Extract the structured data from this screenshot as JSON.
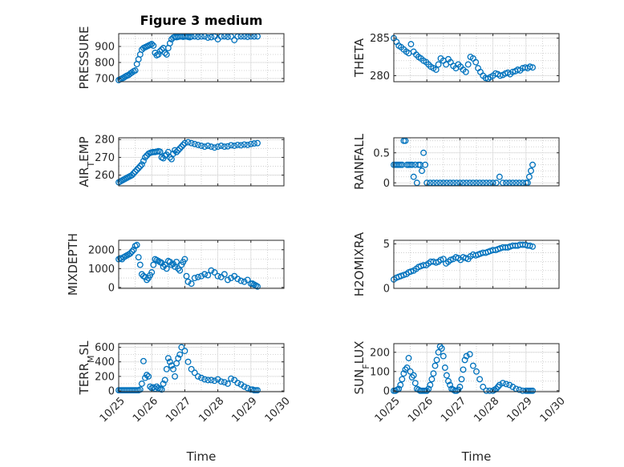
{
  "figure": {
    "title": "Figure 3 medium",
    "marker_color": "#0072BD",
    "grid_color": "#c8c8c8",
    "axis_color": "#262626"
  },
  "chart_data": [
    {
      "type": "scatter",
      "ylabel": "PRESSURE",
      "xlim": [
        0,
        5
      ],
      "ylim": [
        680,
        980
      ],
      "yticks": [
        700,
        800,
        900
      ],
      "ytick_labels": [
        "700",
        "800",
        "900"
      ],
      "x": [
        0.0,
        0.05,
        0.1,
        0.15,
        0.2,
        0.25,
        0.3,
        0.35,
        0.4,
        0.45,
        0.5,
        0.55,
        0.6,
        0.65,
        0.7,
        0.75,
        0.8,
        0.85,
        0.9,
        0.95,
        1.0,
        1.05,
        1.1,
        1.15,
        1.2,
        1.25,
        1.3,
        1.35,
        1.4,
        1.45,
        1.5,
        1.55,
        1.6,
        1.65,
        1.7,
        1.75,
        1.8,
        1.85,
        1.9,
        1.95,
        2.0,
        2.05,
        2.1,
        2.15,
        2.2,
        2.3,
        2.4,
        2.5,
        2.6,
        2.7,
        2.8,
        2.9,
        3.0,
        3.1,
        3.2,
        3.3,
        3.4,
        3.5,
        3.6,
        3.7,
        3.8,
        3.9,
        4.0,
        4.1,
        4.2
      ],
      "y": [
        690,
        695,
        700,
        705,
        712,
        718,
        722,
        730,
        738,
        745,
        750,
        790,
        820,
        850,
        880,
        890,
        895,
        900,
        905,
        910,
        915,
        905,
        860,
        845,
        850,
        870,
        880,
        890,
        860,
        850,
        890,
        920,
        945,
        955,
        960,
        958,
        960,
        962,
        963,
        960,
        962,
        963,
        960,
        958,
        962,
        963,
        960,
        962,
        963,
        955,
        958,
        962,
        945,
        962,
        963,
        960,
        962,
        940,
        962,
        963,
        962,
        960,
        963,
        962,
        963
      ],
      "grid_x": [
        0.5,
        1.0,
        1.5,
        2.0,
        2.5,
        3.0,
        3.5,
        4.0,
        4.5
      ],
      "grid_y": [
        700,
        750,
        800,
        850,
        900,
        950
      ]
    },
    {
      "type": "scatter",
      "ylabel": "THETA",
      "xlim": [
        0,
        5
      ],
      "ylim": [
        279.2,
        285.6
      ],
      "yticks": [
        280,
        285
      ],
      "ytick_labels": [
        "280",
        "285"
      ],
      "x": [
        0.0,
        0.08,
        0.15,
        0.22,
        0.3,
        0.38,
        0.45,
        0.52,
        0.6,
        0.68,
        0.75,
        0.82,
        0.9,
        0.98,
        1.05,
        1.12,
        1.2,
        1.28,
        1.35,
        1.42,
        1.5,
        1.58,
        1.65,
        1.72,
        1.8,
        1.88,
        1.95,
        2.02,
        2.1,
        2.18,
        2.25,
        2.32,
        2.4,
        2.48,
        2.55,
        2.62,
        2.7,
        2.78,
        2.85,
        2.92,
        3.0,
        3.08,
        3.15,
        3.22,
        3.3,
        3.38,
        3.45,
        3.52,
        3.6,
        3.68,
        3.75,
        3.82,
        3.9,
        3.98,
        4.05,
        4.12,
        4.2
      ],
      "y": [
        285.0,
        284.5,
        284.0,
        283.8,
        283.5,
        283.2,
        283.0,
        284.2,
        283.2,
        282.8,
        282.5,
        282.3,
        282.0,
        281.8,
        281.5,
        281.2,
        281.0,
        280.8,
        281.5,
        282.3,
        282.0,
        281.5,
        282.2,
        281.8,
        281.3,
        281.0,
        281.5,
        281.2,
        280.8,
        280.5,
        281.5,
        282.5,
        282.3,
        281.8,
        281.0,
        280.5,
        280.0,
        279.7,
        279.6,
        279.8,
        280.0,
        280.3,
        280.2,
        280.0,
        280.1,
        280.3,
        280.4,
        280.2,
        280.5,
        280.6,
        280.8,
        280.7,
        281.0,
        281.1,
        281.0,
        281.2,
        281.1
      ],
      "grid_x": [
        0.5,
        1.0,
        1.5,
        2.0,
        2.5,
        3.0,
        3.5,
        4.0,
        4.5
      ],
      "grid_y": [
        280,
        281,
        282,
        283,
        284,
        285
      ]
    },
    {
      "type": "scatter",
      "ylabel_parts": [
        "AIR",
        "T",
        "EMP"
      ],
      "ylabel": "AIR_TEMP",
      "xlim": [
        0,
        5
      ],
      "ylim": [
        254,
        281
      ],
      "yticks": [
        260,
        270,
        280
      ],
      "ytick_labels": [
        "260",
        "270",
        "280"
      ],
      "x": [
        0.0,
        0.05,
        0.1,
        0.15,
        0.2,
        0.25,
        0.3,
        0.35,
        0.4,
        0.45,
        0.5,
        0.55,
        0.6,
        0.65,
        0.7,
        0.75,
        0.8,
        0.85,
        0.9,
        0.95,
        1.0,
        1.05,
        1.1,
        1.15,
        1.2,
        1.25,
        1.3,
        1.35,
        1.4,
        1.45,
        1.5,
        1.55,
        1.6,
        1.65,
        1.7,
        1.75,
        1.8,
        1.85,
        1.9,
        1.95,
        2.0,
        2.1,
        2.2,
        2.3,
        2.4,
        2.5,
        2.6,
        2.7,
        2.8,
        2.9,
        3.0,
        3.1,
        3.2,
        3.3,
        3.4,
        3.5,
        3.6,
        3.7,
        3.8,
        3.9,
        4.0,
        4.1,
        4.2
      ],
      "y": [
        256,
        256.5,
        257,
        257.5,
        258,
        258.5,
        259,
        259.5,
        260,
        261,
        262,
        263,
        264,
        265,
        266,
        268,
        270,
        271,
        272,
        272.5,
        272.8,
        273,
        273,
        273.2,
        273.5,
        273.2,
        270,
        269.5,
        271,
        271.5,
        273,
        270,
        269,
        272,
        274,
        273,
        274,
        275,
        276,
        277,
        278,
        278.5,
        278,
        277.5,
        277,
        276.5,
        276,
        276.5,
        276,
        275.5,
        276,
        276.5,
        276,
        276.2,
        276.8,
        276.5,
        277,
        276.8,
        277.2,
        277,
        277.5,
        277.8,
        278
      ],
      "grid_x": [
        0.5,
        1.0,
        1.5,
        2.0,
        2.5,
        3.0,
        3.5,
        4.0,
        4.5
      ],
      "grid_y": [
        260,
        265,
        270,
        275,
        280
      ]
    },
    {
      "type": "scatter",
      "ylabel": "RAINFALL",
      "xlim": [
        0,
        5
      ],
      "ylim": [
        -0.05,
        0.75
      ],
      "yticks": [
        0,
        0.5
      ],
      "ytick_labels": [
        "0",
        "0.5"
      ],
      "x": [
        0.0,
        0.05,
        0.1,
        0.15,
        0.2,
        0.25,
        0.3,
        0.35,
        0.4,
        0.45,
        0.5,
        0.55,
        0.6,
        0.65,
        0.7,
        0.75,
        0.8,
        0.85,
        0.9,
        0.95,
        1.0,
        1.1,
        1.2,
        1.3,
        1.4,
        1.5,
        1.6,
        1.7,
        1.8,
        1.9,
        2.0,
        2.1,
        2.2,
        2.3,
        2.4,
        2.5,
        2.6,
        2.7,
        2.8,
        2.9,
        3.0,
        3.1,
        3.2,
        3.3,
        3.4,
        3.5,
        3.6,
        3.7,
        3.8,
        3.9,
        4.0,
        4.05,
        4.1,
        4.15,
        4.2
      ],
      "y": [
        0.3,
        0.3,
        0.3,
        0.3,
        0.3,
        0.3,
        0.7,
        0.7,
        0.3,
        0.3,
        0.3,
        0.3,
        0.1,
        0.3,
        0.0,
        0.3,
        0.3,
        0.2,
        0.5,
        0.3,
        0.0,
        0.0,
        0.0,
        0.0,
        0.0,
        0.0,
        0.0,
        0.0,
        0.0,
        0.0,
        0.0,
        0.0,
        0.0,
        0.0,
        0.0,
        0.0,
        0.0,
        0.0,
        0.0,
        0.0,
        0.0,
        0.0,
        0.1,
        0.0,
        0.0,
        0.0,
        0.0,
        0.0,
        0.0,
        0.0,
        0.0,
        0.0,
        0.1,
        0.2,
        0.3
      ],
      "grid_x": [
        0.5,
        1.0,
        1.5,
        2.0,
        2.5,
        3.0,
        3.5,
        4.0,
        4.5
      ],
      "grid_y": [
        0.1,
        0.2,
        0.3,
        0.4,
        0.5,
        0.6,
        0.7
      ]
    },
    {
      "type": "scatter",
      "ylabel": "MIXDEPTH",
      "xlim": [
        0,
        5
      ],
      "ylim": [
        -50,
        2500
      ],
      "yticks": [
        0,
        1000,
        2000
      ],
      "ytick_labels": [
        "0",
        "1000",
        "2000"
      ],
      "x": [
        0.0,
        0.05,
        0.1,
        0.15,
        0.2,
        0.25,
        0.3,
        0.35,
        0.4,
        0.45,
        0.5,
        0.55,
        0.6,
        0.65,
        0.7,
        0.75,
        0.8,
        0.85,
        0.9,
        0.95,
        1.0,
        1.05,
        1.1,
        1.15,
        1.2,
        1.25,
        1.3,
        1.35,
        1.4,
        1.45,
        1.5,
        1.55,
        1.6,
        1.65,
        1.7,
        1.75,
        1.8,
        1.85,
        1.9,
        1.95,
        2.0,
        2.05,
        2.1,
        2.2,
        2.3,
        2.4,
        2.5,
        2.6,
        2.7,
        2.8,
        2.9,
        3.0,
        3.1,
        3.2,
        3.3,
        3.4,
        3.5,
        3.6,
        3.7,
        3.8,
        3.9,
        4.0,
        4.05,
        4.1,
        4.15,
        4.2
      ],
      "y": [
        1500,
        1550,
        1500,
        1600,
        1650,
        1700,
        1750,
        1800,
        1900,
        2000,
        2200,
        2250,
        1600,
        1200,
        700,
        600,
        550,
        400,
        500,
        650,
        800,
        1200,
        1500,
        1450,
        1400,
        1350,
        1300,
        1100,
        1200,
        1000,
        1400,
        1350,
        1200,
        1250,
        1100,
        1350,
        1000,
        900,
        1200,
        1350,
        1500,
        600,
        300,
        200,
        500,
        550,
        600,
        700,
        650,
        900,
        800,
        600,
        550,
        700,
        400,
        500,
        600,
        450,
        350,
        300,
        400,
        200,
        200,
        150,
        100,
        50
      ],
      "grid_x": [
        0.5,
        1.0,
        1.5,
        2.0,
        2.5,
        3.0,
        3.5,
        4.0,
        4.5
      ],
      "grid_y": [
        500,
        1000,
        1500,
        2000
      ]
    },
    {
      "type": "scatter",
      "ylabel": "H2OMIXRA",
      "xlim": [
        0,
        5
      ],
      "ylim": [
        0,
        5.4
      ],
      "yticks": [
        0,
        5
      ],
      "ytick_labels": [
        "0",
        "5"
      ],
      "x": [
        0.0,
        0.08,
        0.15,
        0.22,
        0.3,
        0.38,
        0.45,
        0.52,
        0.6,
        0.68,
        0.75,
        0.82,
        0.9,
        0.98,
        1.05,
        1.12,
        1.2,
        1.28,
        1.35,
        1.42,
        1.5,
        1.58,
        1.65,
        1.72,
        1.8,
        1.88,
        1.95,
        2.02,
        2.1,
        2.18,
        2.25,
        2.32,
        2.4,
        2.48,
        2.55,
        2.62,
        2.7,
        2.78,
        2.85,
        2.92,
        3.0,
        3.08,
        3.15,
        3.22,
        3.3,
        3.38,
        3.45,
        3.52,
        3.6,
        3.68,
        3.75,
        3.82,
        3.9,
        3.98,
        4.05,
        4.12,
        4.2
      ],
      "y": [
        1.0,
        1.2,
        1.3,
        1.4,
        1.5,
        1.6,
        1.8,
        1.9,
        2.0,
        2.2,
        2.4,
        2.5,
        2.6,
        2.6,
        2.8,
        3.0,
        3.0,
        2.9,
        3.0,
        3.2,
        3.3,
        2.8,
        3.0,
        3.2,
        3.3,
        3.5,
        3.4,
        3.2,
        3.5,
        3.4,
        3.3,
        3.6,
        3.8,
        3.7,
        3.8,
        3.9,
        4.0,
        4.0,
        4.1,
        4.2,
        4.3,
        4.3,
        4.4,
        4.5,
        4.6,
        4.6,
        4.6,
        4.7,
        4.8,
        4.8,
        4.8,
        4.9,
        4.9,
        4.9,
        4.8,
        4.8,
        4.7
      ],
      "grid_x": [
        0.5,
        1.0,
        1.5,
        2.0,
        2.5,
        3.0,
        3.5,
        4.0,
        4.5
      ],
      "grid_y": [
        1,
        2,
        3,
        4,
        5
      ]
    },
    {
      "type": "scatter",
      "ylabel_parts": [
        "TERR",
        "M",
        "SL"
      ],
      "ylabel": "TERR_MSL",
      "xlim": [
        0,
        5
      ],
      "ylim": [
        -10,
        650
      ],
      "yticks": [
        0,
        200,
        400,
        600
      ],
      "ytick_labels": [
        "0",
        "200",
        "400",
        "600"
      ],
      "x": [
        0.0,
        0.05,
        0.1,
        0.15,
        0.2,
        0.25,
        0.3,
        0.35,
        0.4,
        0.45,
        0.5,
        0.55,
        0.6,
        0.65,
        0.7,
        0.75,
        0.8,
        0.85,
        0.9,
        0.95,
        1.0,
        1.05,
        1.1,
        1.15,
        1.2,
        1.25,
        1.3,
        1.35,
        1.4,
        1.45,
        1.5,
        1.55,
        1.6,
        1.65,
        1.7,
        1.75,
        1.8,
        1.85,
        1.9,
        2.0,
        2.1,
        2.2,
        2.3,
        2.4,
        2.5,
        2.6,
        2.7,
        2.8,
        2.9,
        3.0,
        3.1,
        3.2,
        3.3,
        3.4,
        3.5,
        3.6,
        3.7,
        3.8,
        3.9,
        4.0,
        4.05,
        4.1,
        4.15,
        4.2
      ],
      "y": [
        10,
        10,
        10,
        10,
        10,
        10,
        10,
        10,
        10,
        10,
        10,
        10,
        10,
        20,
        100,
        410,
        180,
        220,
        200,
        60,
        40,
        50,
        30,
        60,
        40,
        30,
        20,
        100,
        150,
        300,
        450,
        400,
        350,
        300,
        200,
        380,
        450,
        500,
        600,
        550,
        400,
        300,
        250,
        200,
        180,
        160,
        150,
        150,
        140,
        160,
        130,
        120,
        100,
        170,
        150,
        110,
        90,
        60,
        40,
        20,
        20,
        10,
        10,
        10
      ],
      "grid_x": [
        0.5,
        1.0,
        1.5,
        2.0,
        2.5,
        3.0,
        3.5,
        4.0,
        4.5
      ],
      "grid_y": [
        100,
        200,
        300,
        400,
        500,
        600
      ]
    },
    {
      "type": "scatter",
      "ylabel_parts": [
        "SUN",
        "F",
        "LUX"
      ],
      "ylabel": "SUN_FLUX",
      "xlim": [
        0,
        5
      ],
      "ylim": [
        -5,
        245
      ],
      "yticks": [
        0,
        100,
        200
      ],
      "ytick_labels": [
        "0",
        "100",
        "200"
      ],
      "x": [
        0.0,
        0.05,
        0.1,
        0.15,
        0.2,
        0.25,
        0.3,
        0.35,
        0.4,
        0.45,
        0.5,
        0.55,
        0.6,
        0.65,
        0.7,
        0.75,
        0.8,
        0.85,
        0.9,
        0.95,
        1.0,
        1.05,
        1.1,
        1.15,
        1.2,
        1.25,
        1.3,
        1.35,
        1.4,
        1.45,
        1.5,
        1.55,
        1.6,
        1.65,
        1.7,
        1.75,
        1.8,
        1.85,
        1.9,
        1.95,
        2.0,
        2.05,
        2.1,
        2.15,
        2.2,
        2.3,
        2.4,
        2.5,
        2.6,
        2.7,
        2.8,
        2.9,
        3.0,
        3.05,
        3.1,
        3.15,
        3.2,
        3.3,
        3.4,
        3.5,
        3.6,
        3.7,
        3.8,
        3.9,
        4.0,
        4.05,
        4.1,
        4.15,
        4.2
      ],
      "y": [
        0,
        0,
        5,
        10,
        30,
        60,
        90,
        110,
        120,
        170,
        100,
        70,
        80,
        40,
        10,
        5,
        0,
        0,
        0,
        0,
        0,
        10,
        30,
        60,
        90,
        130,
        160,
        200,
        230,
        220,
        180,
        120,
        80,
        50,
        30,
        10,
        5,
        0,
        0,
        5,
        20,
        60,
        110,
        160,
        180,
        190,
        130,
        100,
        60,
        20,
        0,
        0,
        0,
        5,
        10,
        20,
        30,
        40,
        35,
        30,
        20,
        10,
        5,
        0,
        0,
        0,
        0,
        0,
        0
      ],
      "grid_x": [
        0.5,
        1.0,
        1.5,
        2.0,
        2.5,
        3.0,
        3.5,
        4.0,
        4.5
      ],
      "grid_y": [
        50,
        100,
        150,
        200
      ]
    }
  ],
  "xaxis": {
    "xlim": [
      0,
      5
    ],
    "ticks": [
      0,
      1,
      2,
      3,
      4,
      5
    ],
    "tick_labels": [
      "10/25",
      "10/26",
      "10/27",
      "10/28",
      "10/29",
      "10/30"
    ],
    "xlabel_left": "Time",
    "xlabel_right": "Time"
  }
}
